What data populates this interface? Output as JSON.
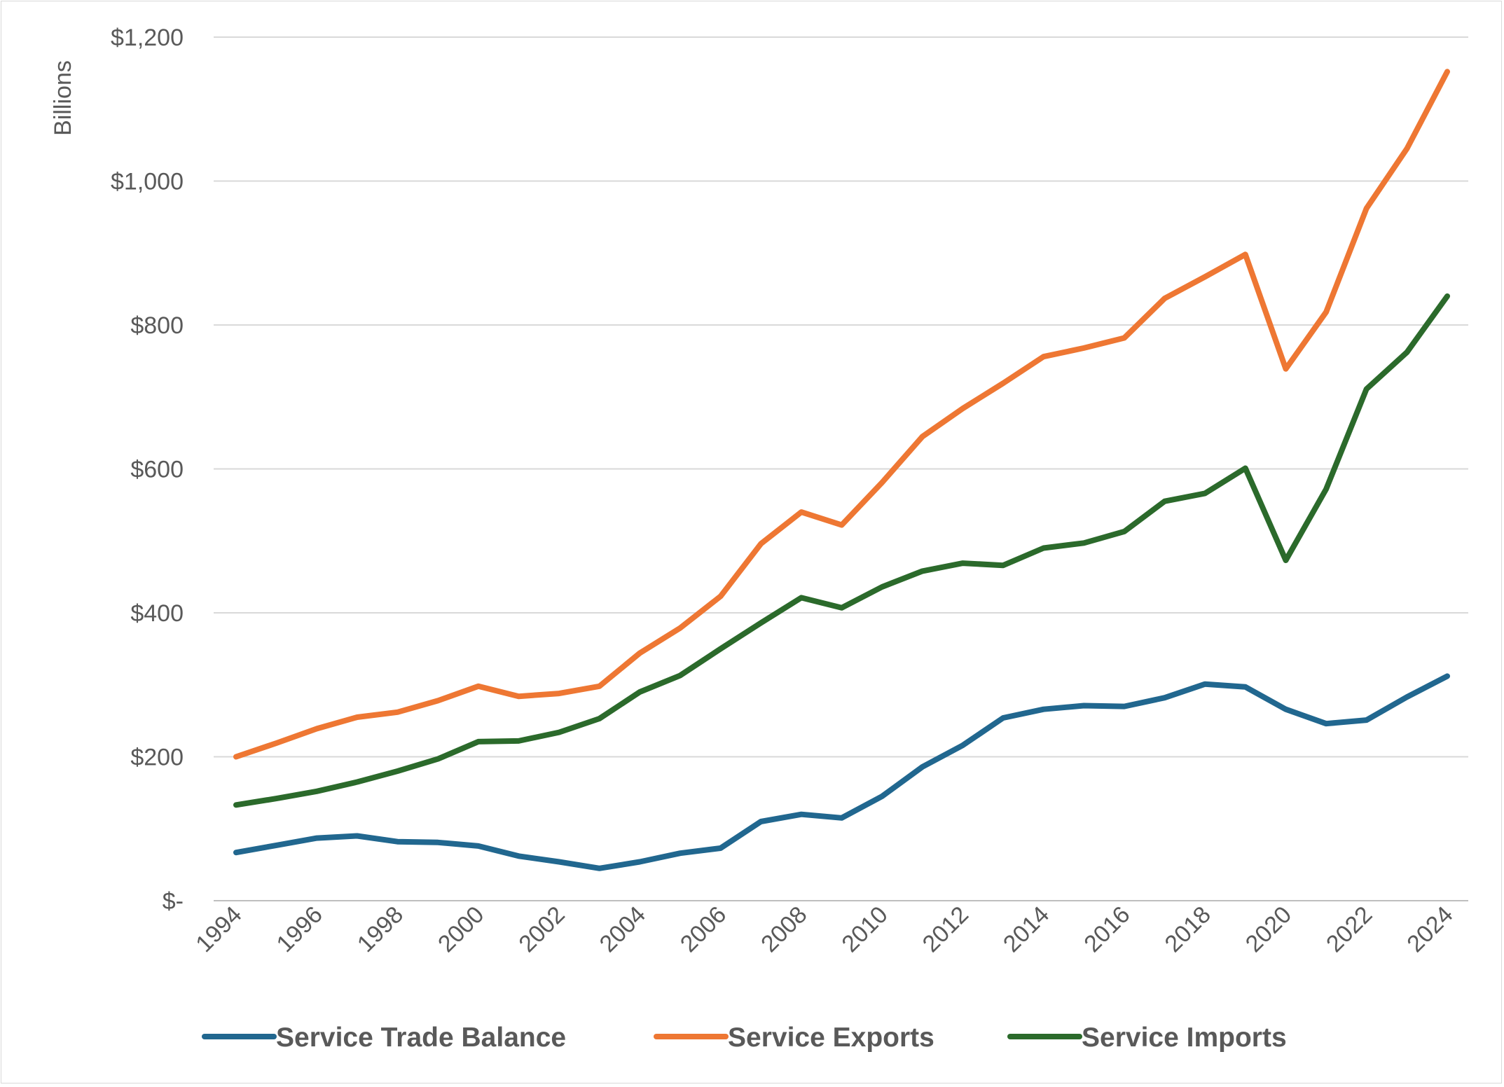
{
  "chart_data": {
    "type": "line",
    "title": "",
    "xlabel": "",
    "ylabel": "Billions",
    "ylim": [
      0,
      1200
    ],
    "yticks": [
      0,
      200,
      400,
      600,
      800,
      1000,
      1200
    ],
    "ytick_labels": [
      "$-",
      "$200",
      "$400",
      "$600",
      "$800",
      "$1,000",
      "$1,200"
    ],
    "x": [
      1994,
      1995,
      1996,
      1997,
      1998,
      1999,
      2000,
      2001,
      2002,
      2003,
      2004,
      2005,
      2006,
      2007,
      2008,
      2009,
      2010,
      2011,
      2012,
      2013,
      2014,
      2015,
      2016,
      2017,
      2018,
      2019,
      2020,
      2021,
      2022,
      2023,
      2024
    ],
    "xtick_labels": [
      "1994",
      "1996",
      "1998",
      "2000",
      "2002",
      "2004",
      "2006",
      "2008",
      "2010",
      "2012",
      "2014",
      "2016",
      "2018",
      "2020",
      "2022",
      "2024"
    ],
    "grid": true,
    "legend_position": "bottom",
    "series": [
      {
        "name": "Service Trade Balance",
        "color": "#21678f",
        "values": [
          67,
          77,
          87,
          90,
          82,
          81,
          76,
          62,
          54,
          45,
          54,
          66,
          73,
          110,
          120,
          115,
          145,
          186,
          216,
          254,
          266,
          271,
          270,
          282,
          301,
          297,
          266,
          246,
          251,
          283,
          312
        ]
      },
      {
        "name": "Service Exports",
        "color": "#ee7733",
        "values": [
          200,
          219,
          239,
          255,
          262,
          278,
          298,
          284,
          288,
          298,
          344,
          379,
          423,
          496,
          540,
          522,
          581,
          645,
          684,
          719,
          756,
          768,
          782,
          837,
          867,
          898,
          739,
          818,
          962,
          1045,
          1152
        ]
      },
      {
        "name": "Service Imports",
        "color": "#2b6a2b",
        "values": [
          133,
          142,
          152,
          165,
          180,
          197,
          221,
          222,
          234,
          253,
          290,
          313,
          350,
          386,
          421,
          407,
          436,
          458,
          469,
          466,
          490,
          497,
          513,
          555,
          566,
          601,
          473,
          572,
          711,
          762,
          840
        ]
      }
    ]
  }
}
